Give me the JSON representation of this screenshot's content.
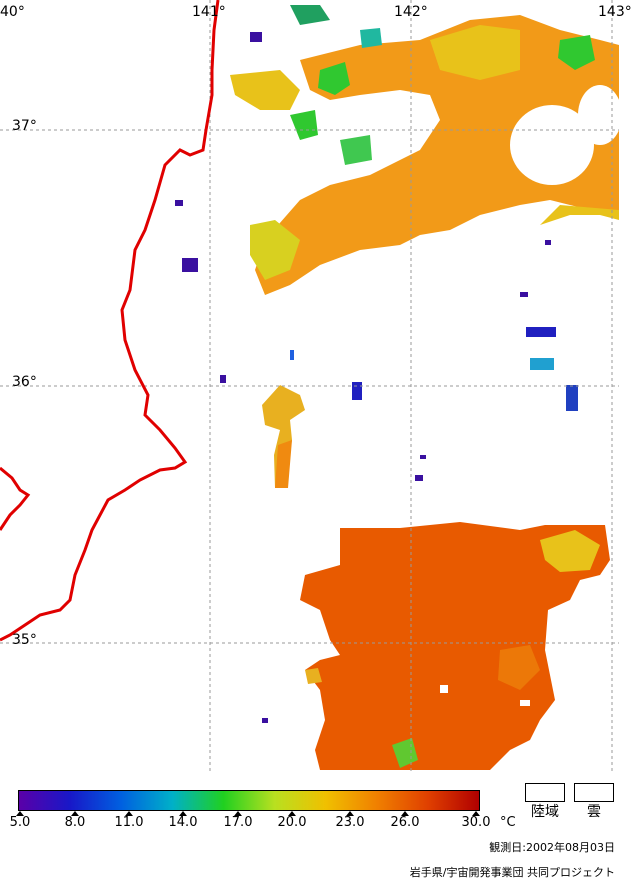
{
  "map": {
    "lon_labels": [
      "40°",
      "141°",
      "142°",
      "143°"
    ],
    "lat_labels": [
      "37°",
      "36°",
      "35°"
    ],
    "colors": {
      "coastline": "#e00000",
      "graticule": "#9a9a9a",
      "hot": "#e85a00",
      "warm": "#f08a10",
      "mild": "#e8c21a",
      "cool": "#7ad32a",
      "green": "#22cc22",
      "cold": "#2040c0",
      "deep": "#3a10a0"
    }
  },
  "scale": {
    "ticks": [
      "5.0",
      "8.0",
      "11.0",
      "14.0",
      "17.0",
      "20.0",
      "23.0",
      "26.0",
      "30.0"
    ],
    "unit": "°C",
    "gradient": [
      "#5a00a8",
      "#1818c8",
      "#0060e0",
      "#00b0c8",
      "#20d020",
      "#b8e020",
      "#f0c000",
      "#f08000",
      "#e04000",
      "#b00000"
    ]
  },
  "legend": {
    "land_label": "陸域",
    "cloud_label": "雲"
  },
  "footer": {
    "date": "観測日:2002年08月03日",
    "credit": "岩手県/宇宙開発事業団 共同プロジェクト"
  }
}
